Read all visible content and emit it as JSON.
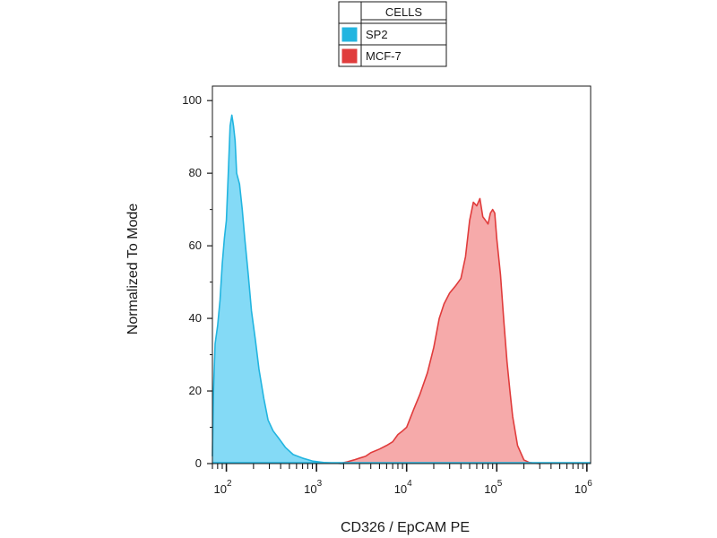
{
  "chart_data": {
    "type": "area",
    "xlabel": "CD326 / EpCAM  PE",
    "ylabel": "Normalized To Mode",
    "x_scale": "log",
    "xlim": [
      70,
      1100000
    ],
    "ylim": [
      0,
      104
    ],
    "y_ticks": [
      0,
      20,
      40,
      60,
      80,
      100
    ],
    "x_major_ticks": [
      {
        "value": 100,
        "base": "10",
        "exp": "2"
      },
      {
        "value": 1000,
        "base": "10",
        "exp": "3"
      },
      {
        "value": 10000,
        "base": "10",
        "exp": "4"
      },
      {
        "value": 100000,
        "base": "10",
        "exp": "5"
      },
      {
        "value": 1000000,
        "base": "10",
        "exp": "6"
      }
    ],
    "legend": {
      "header": "CELLS",
      "placement": "top-center"
    },
    "series": [
      {
        "name": "SP2",
        "color": "#22b5e0",
        "fill": "#7dd8f5",
        "x": [
          70,
          72,
          75,
          80,
          85,
          90,
          95,
          100,
          105,
          110,
          115,
          120,
          125,
          130,
          140,
          150,
          160,
          175,
          190,
          210,
          230,
          260,
          290,
          330,
          380,
          450,
          550,
          700,
          900,
          1200,
          1600,
          2000
        ],
        "y": [
          2,
          20,
          33,
          38,
          45,
          55,
          62,
          67,
          80,
          93,
          96,
          93,
          89,
          80,
          77,
          70,
          62,
          52,
          42,
          34,
          26,
          18,
          12,
          9,
          7,
          4.5,
          2.5,
          1.5,
          0.7,
          0.3,
          0.1,
          0
        ]
      },
      {
        "name": "MCF-7",
        "color": "#e03c3c",
        "fill": "#f5a5a5",
        "x": [
          1800,
          2200,
          2600,
          3000,
          3500,
          4000,
          5000,
          6000,
          7000,
          8000,
          9000,
          10000,
          12000,
          14000,
          17000,
          20000,
          23000,
          26000,
          30000,
          35000,
          40000,
          45000,
          50000,
          55000,
          60000,
          65000,
          70000,
          75000,
          80000,
          85000,
          90000,
          95000,
          100000,
          110000,
          120000,
          130000,
          140000,
          150000,
          170000,
          200000,
          230000,
          260000,
          300000
        ],
        "y": [
          0,
          0.5,
          1,
          1.5,
          2,
          3,
          4,
          5,
          6,
          8,
          9,
          10,
          15,
          19,
          25,
          32,
          40,
          44,
          47,
          49,
          51,
          57,
          67,
          72,
          71,
          73,
          68,
          67,
          66,
          69,
          70,
          69,
          62,
          52,
          39,
          28,
          20,
          13,
          5,
          1,
          0.3,
          0.1,
          0
        ]
      }
    ]
  }
}
